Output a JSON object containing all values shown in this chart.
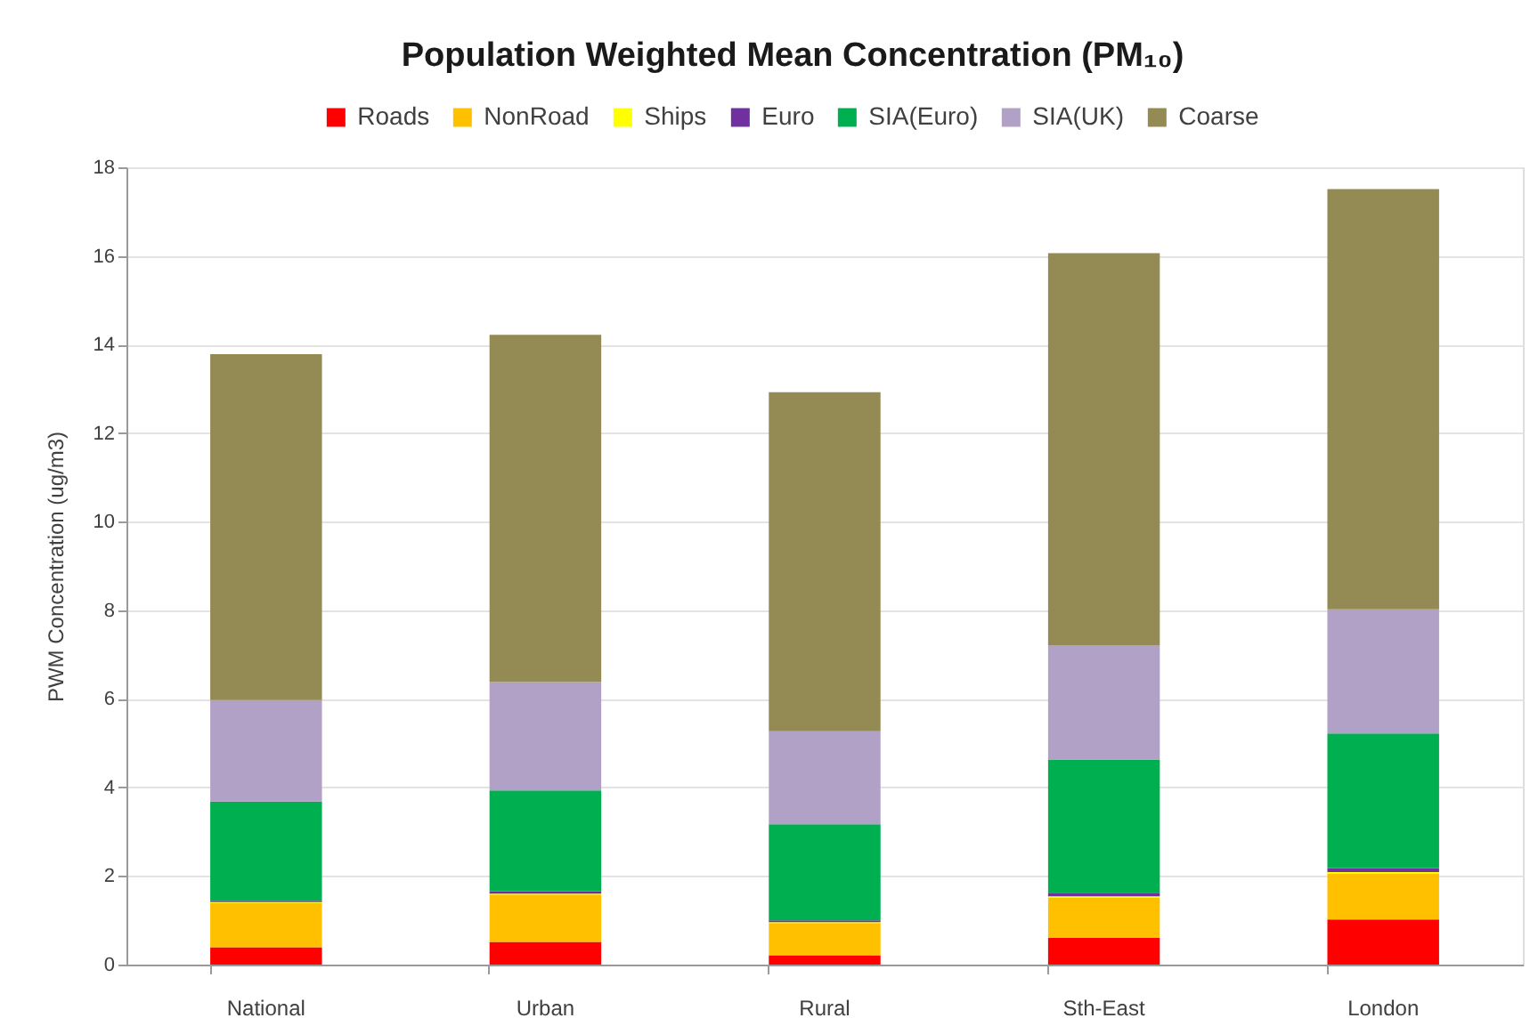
{
  "chart_data": {
    "type": "bar",
    "stacked": true,
    "title": "Population Weighted Mean Concentration (PM₁₀)",
    "ylabel": "PWM Concentration (ug/m3)",
    "categories": [
      "National",
      "Urban",
      "Rural",
      "Sth-East",
      "London"
    ],
    "series": [
      {
        "name": "Roads",
        "color": "#ff0000",
        "values": [
          0.39,
          0.51,
          0.21,
          0.61,
          1.02
        ]
      },
      {
        "name": "NonRoad",
        "color": "#ffc000",
        "values": [
          1.0,
          1.07,
          0.73,
          0.9,
          1.04
        ]
      },
      {
        "name": "Ships",
        "color": "#ffff00",
        "values": [
          0.02,
          0.02,
          0.02,
          0.03,
          0.03
        ]
      },
      {
        "name": "Euro",
        "color": "#7030a0",
        "values": [
          0.03,
          0.05,
          0.04,
          0.08,
          0.09
        ]
      },
      {
        "name": "SIA(Euro)",
        "color": "#00b050",
        "values": [
          2.24,
          2.28,
          2.17,
          3.01,
          3.04
        ]
      },
      {
        "name": "SIA(UK)",
        "color": "#b2a1c7",
        "values": [
          2.29,
          2.45,
          2.1,
          2.58,
          2.8
        ]
      },
      {
        "name": "Coarse",
        "color": "#948a54",
        "values": [
          7.81,
          7.84,
          7.65,
          8.85,
          9.49
        ]
      }
    ],
    "ylim": [
      0,
      18
    ],
    "yticks": [
      0,
      2,
      4,
      6,
      8,
      10,
      12,
      14,
      16,
      18
    ],
    "grid": "y",
    "legend": "top"
  }
}
